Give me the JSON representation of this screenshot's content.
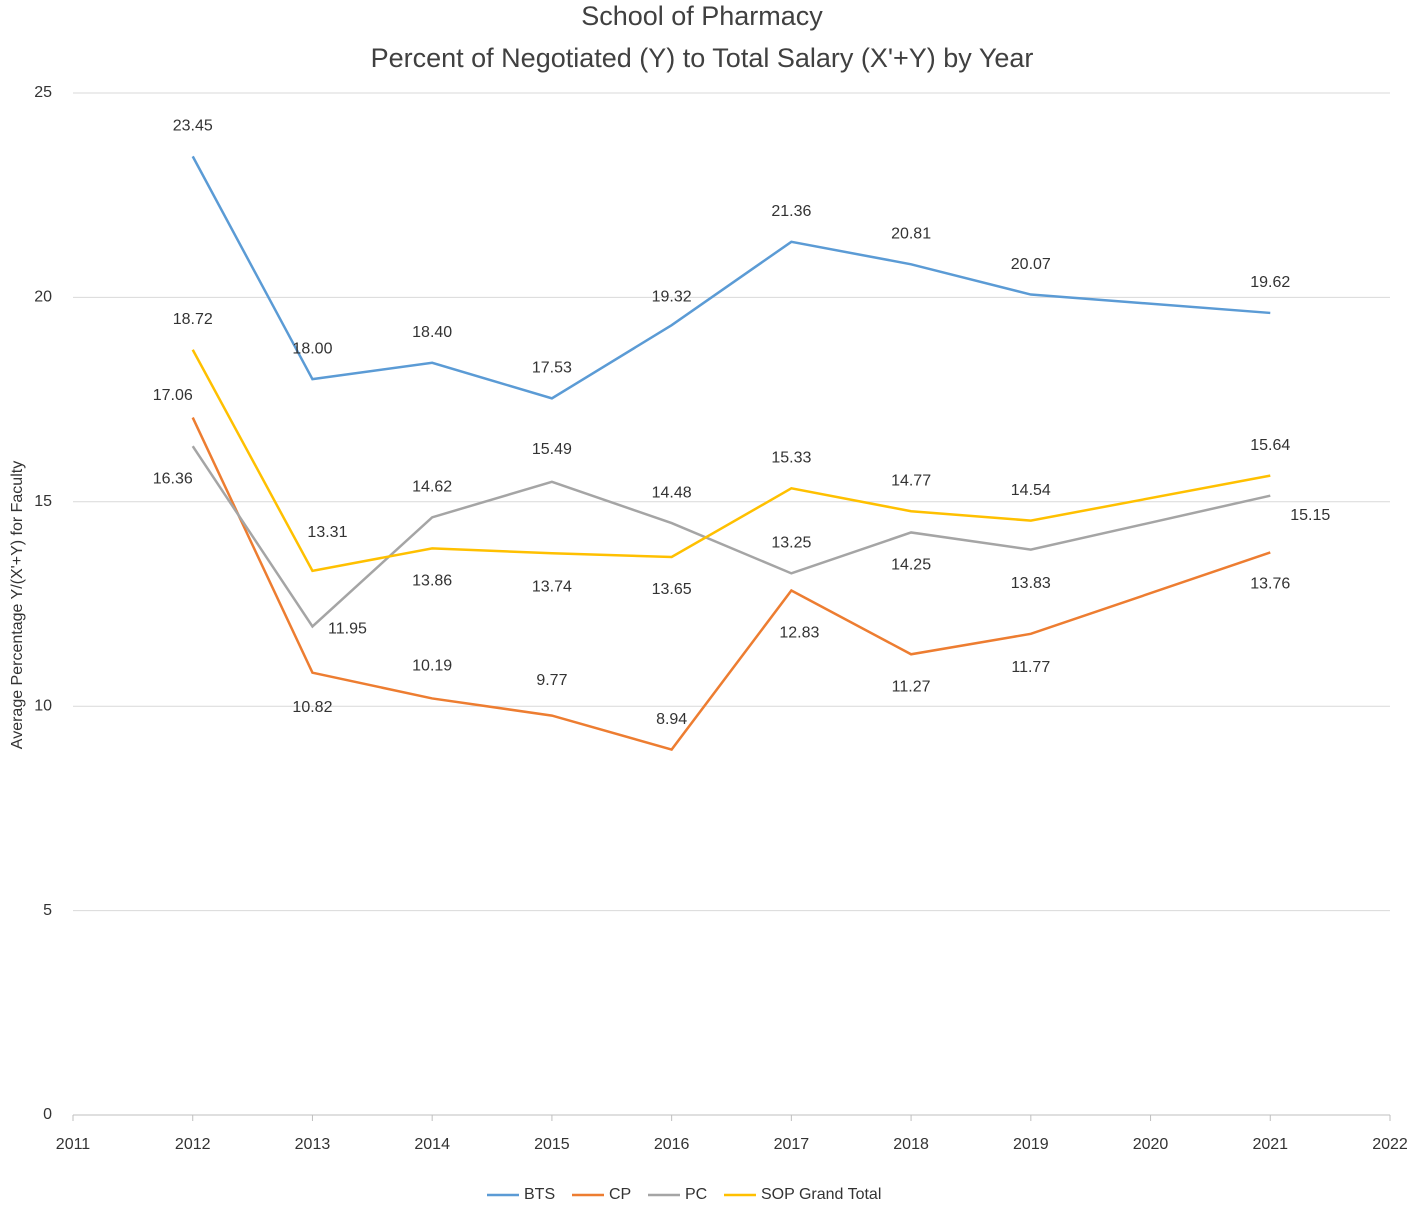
{
  "chart_data": {
    "type": "line",
    "title": "School of Pharmacy",
    "subtitle": "Percent of Negotiated (Y) to Total Salary (X'+Y) by Year",
    "y_label": "Average Percentage Y/(X'+Y) for Faculty",
    "x": [
      2012,
      2013,
      2014,
      2015,
      2016,
      2017,
      2018,
      2019,
      2021
    ],
    "xlim": [
      2011,
      2022
    ],
    "xticks": [
      2011,
      2012,
      2013,
      2014,
      2015,
      2016,
      2017,
      2018,
      2019,
      2020,
      2021,
      2022
    ],
    "ylim": [
      0,
      25
    ],
    "yticks": [
      0,
      5,
      10,
      15,
      20,
      25
    ],
    "grid": true,
    "legend": "bottom",
    "series": [
      {
        "name": "BTS",
        "color": "#5b9bd5",
        "values": [
          23.45,
          18.0,
          18.4,
          17.53,
          19.32,
          21.36,
          20.81,
          20.07,
          19.62
        ],
        "value_labels": [
          "23.45",
          "18.00",
          "18.40",
          "17.53",
          "19.32",
          "21.36",
          "20.81",
          "20.07",
          "19.62"
        ]
      },
      {
        "name": "CP",
        "color": "#ed7d31",
        "values": [
          17.06,
          10.82,
          10.19,
          9.77,
          8.94,
          12.83,
          11.27,
          11.77,
          13.76
        ],
        "value_labels": [
          "17.06",
          "10.82",
          "10.19",
          "9.77",
          "8.94",
          "12.83",
          "11.27",
          "11.77",
          "13.76"
        ]
      },
      {
        "name": "PC",
        "color": "#a5a5a5",
        "values": [
          16.36,
          11.95,
          14.62,
          15.49,
          14.48,
          13.25,
          14.25,
          13.83,
          15.15
        ],
        "value_labels": [
          "16.36",
          "11.95",
          "14.62",
          "15.49",
          "14.48",
          "13.25",
          "14.25",
          "13.83",
          "15.15"
        ]
      },
      {
        "name": "SOP Grand Total",
        "color": "#ffc000",
        "values": [
          18.72,
          13.31,
          13.86,
          13.74,
          13.65,
          15.33,
          14.77,
          14.54,
          15.64
        ],
        "value_labels": [
          "18.72",
          "13.31",
          "13.86",
          "13.74",
          "13.65",
          "15.33",
          "14.77",
          "14.54",
          "15.64"
        ]
      }
    ]
  }
}
